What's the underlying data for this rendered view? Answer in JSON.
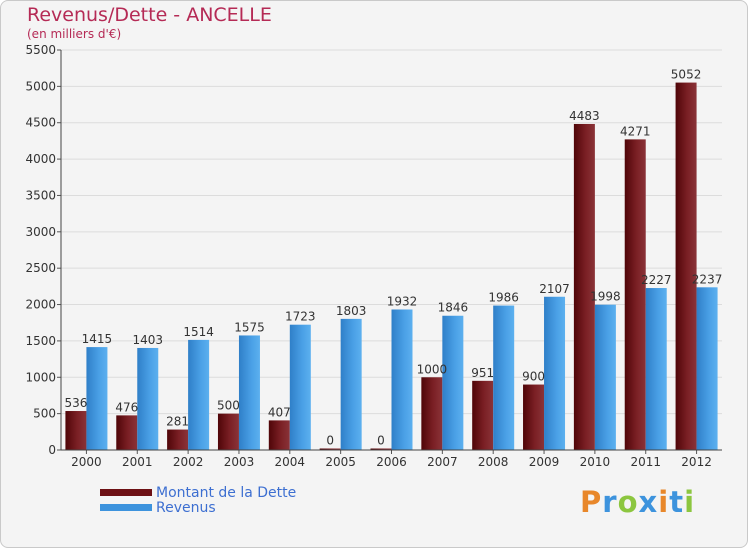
{
  "chart_data": {
    "type": "bar",
    "title": "Revenus/Dette - ANCELLE",
    "subtitle": "(en milliers d'€)",
    "xlabel": "",
    "ylabel": "",
    "ylim": [
      0,
      5500
    ],
    "yticks": [
      0,
      500,
      1000,
      1500,
      2000,
      2500,
      3000,
      3500,
      4000,
      4500,
      5000,
      5500
    ],
    "grid": true,
    "legend_position": "bottom-left",
    "categories": [
      "2000",
      "2001",
      "2002",
      "2003",
      "2004",
      "2005",
      "2006",
      "2007",
      "2008",
      "2009",
      "2010",
      "2011",
      "2012"
    ],
    "series": [
      {
        "name": "Montant de la Dette",
        "color": "#6d1014",
        "values": [
          536,
          476,
          281,
          500,
          407,
          0,
          0,
          1000,
          951,
          900,
          4483,
          4271,
          5052
        ],
        "labels": [
          "536",
          "476",
          "281",
          "500",
          "407",
          "0",
          "0",
          "1000",
          "951",
          "900",
          "4483",
          "4271",
          "5052"
        ]
      },
      {
        "name": "Revenus",
        "color": "#3d93dd",
        "values": [
          1415,
          1403,
          1514,
          1575,
          1723,
          1803,
          1932,
          1846,
          1986,
          2107,
          1998,
          2227,
          2237
        ],
        "labels": [
          "1415",
          "1403",
          "1514",
          "1575",
          "1723",
          "1803",
          "1932",
          "1846",
          "1986",
          "2107",
          "1998",
          "2227",
          "2237"
        ]
      }
    ]
  },
  "legend": {
    "items": [
      {
        "label": "Montant de la Dette",
        "color": "#6d1014"
      },
      {
        "label": "Revenus",
        "color": "#3d93dd"
      }
    ]
  },
  "logo": {
    "letters": [
      "P",
      "r",
      "o",
      "x",
      "i",
      "t",
      "i"
    ],
    "colors": [
      "#e8872a",
      "#3d93dd",
      "#8cc63f",
      "#3d93dd",
      "#e8872a",
      "#3d93dd",
      "#8cc63f"
    ]
  }
}
